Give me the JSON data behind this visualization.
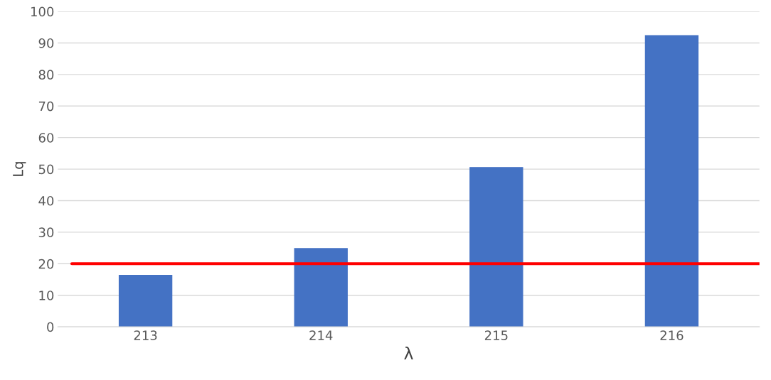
{
  "chart_data": {
    "type": "bar",
    "xlabel": "λ",
    "ylabel": "Lq",
    "categories": [
      "213",
      "214",
      "215",
      "216"
    ],
    "series": [
      {
        "color": "#4472c4",
        "values": [
          16.3,
          24.8,
          50.5,
          92.3
        ]
      }
    ],
    "ylim": [
      0,
      100
    ],
    "yticks": [
      0,
      10,
      20,
      30,
      40,
      50,
      60,
      70,
      80,
      90,
      100
    ],
    "grid": "y",
    "legend": false,
    "ref_lines": [
      {
        "axis": "y",
        "value": 20,
        "color": "#ff0000",
        "line_style": "solid"
      }
    ]
  }
}
